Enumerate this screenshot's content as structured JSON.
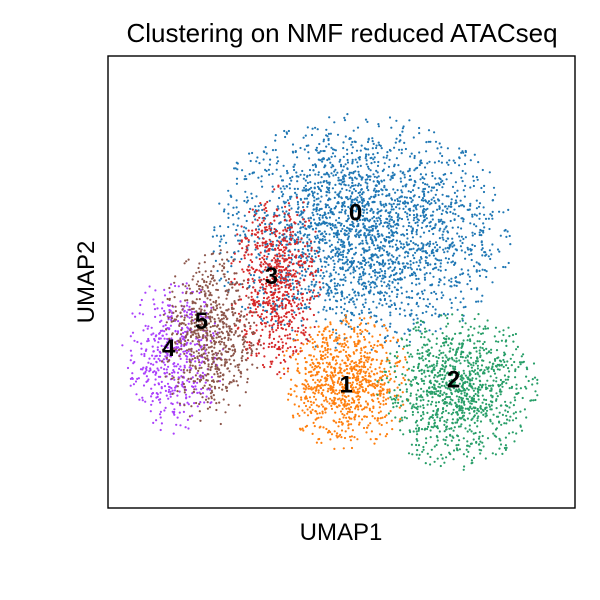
{
  "chart_data": {
    "type": "scatter",
    "title": "Clustering on NMF reduced ATACseq",
    "xlabel": "UMAP1",
    "ylabel": "UMAP2",
    "grid": false,
    "legend": "on data",
    "xlim": [
      0,
      100
    ],
    "ylim": [
      0,
      100
    ],
    "clusters": [
      {
        "label": "0",
        "color": "#1f77b4",
        "center": [
          54,
          61
        ],
        "spread": [
          15,
          12
        ],
        "count": 2600
      },
      {
        "label": "1",
        "color": "#ff7f0e",
        "center": [
          51,
          28
        ],
        "spread": [
          6.5,
          7
        ],
        "count": 900
      },
      {
        "label": "2",
        "color": "#279e68",
        "center": [
          75,
          26
        ],
        "spread": [
          8,
          8
        ],
        "count": 1100
      },
      {
        "label": "3",
        "color": "#d62728",
        "center": [
          36,
          50
        ],
        "spread": [
          4.5,
          10
        ],
        "count": 700
      },
      {
        "label": "4",
        "color": "#aa40fc",
        "center": [
          14,
          34
        ],
        "spread": [
          5,
          8
        ],
        "count": 500
      },
      {
        "label": "5",
        "color": "#8c564b",
        "center": [
          22,
          38
        ],
        "spread": [
          5,
          9
        ],
        "count": 700
      }
    ],
    "labels": [
      {
        "text": "0",
        "x": 53,
        "y": 65
      },
      {
        "text": "1",
        "x": 51,
        "y": 27
      },
      {
        "text": "2",
        "x": 74,
        "y": 28
      },
      {
        "text": "3",
        "x": 35,
        "y": 51
      },
      {
        "text": "4",
        "x": 13,
        "y": 35
      },
      {
        "text": "5",
        "x": 20,
        "y": 41
      }
    ]
  }
}
